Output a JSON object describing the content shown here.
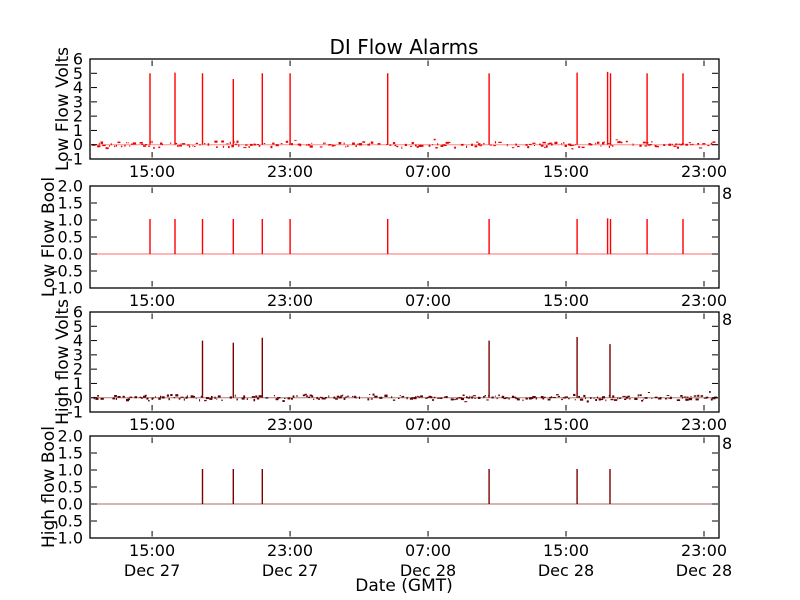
{
  "figure": {
    "title": "DI Flow Alarms",
    "xlabel": "Date (GMT)"
  },
  "chart_data": {
    "type": "line",
    "title": "DI Flow Alarms",
    "xlabel": "Date (GMT)",
    "legend": "none",
    "grid": false,
    "x_axis": {
      "unit": "hours since Dec 27 00:00 GMT",
      "range": [
        11.4,
        47.87
      ],
      "ticks": [
        {
          "t": 15,
          "time": "15:00",
          "date": "Dec 27"
        },
        {
          "t": 23,
          "time": "23:00",
          "date": "Dec 27"
        },
        {
          "t": 31,
          "time": "07:00",
          "date": "Dec 28"
        },
        {
          "t": 39,
          "time": "15:00",
          "date": "Dec 28"
        },
        {
          "t": 47,
          "time": "23:00",
          "date": "Dec 28"
        }
      ]
    },
    "clipped_tick_fragment": "8",
    "subplots": [
      {
        "ylabel": "Low Flow Volts",
        "ylim": [
          -1,
          6
        ],
        "ytick_values": [
          6,
          5,
          4,
          3,
          2,
          1,
          0,
          -1
        ],
        "ytick_labels": [
          "6",
          "5",
          "4",
          "3",
          "2",
          "1",
          "0",
          "-1"
        ],
        "line_color": "#ff0000",
        "baseline_color": "#ff8a8a",
        "noise_color": "#e80000",
        "baseline_value": 0,
        "noise_band": {
          "center": 0,
          "amplitude": 0.25,
          "density": 0.55
        },
        "show_dates": false,
        "show_clipped_fragment": false,
        "spikes": [
          {
            "t": 14.88,
            "v": 5.0
          },
          {
            "t": 16.33,
            "v": 5.05
          },
          {
            "t": 17.92,
            "v": 5.0
          },
          {
            "t": 19.71,
            "v": 4.6
          },
          {
            "t": 21.39,
            "v": 5.0
          },
          {
            "t": 23.0,
            "v": 5.0
          },
          {
            "t": 28.66,
            "v": 5.0
          },
          {
            "t": 34.54,
            "v": 5.0
          },
          {
            "t": 39.64,
            "v": 5.05
          },
          {
            "t": 41.41,
            "v": 5.1
          },
          {
            "t": 41.58,
            "v": 5.0
          },
          {
            "t": 43.7,
            "v": 5.0
          },
          {
            "t": 45.78,
            "v": 5.0
          }
        ]
      },
      {
        "ylabel": "Low Flow Bool",
        "ylim": [
          -1.0,
          2.0
        ],
        "ytick_values": [
          2.0,
          1.5,
          1.0,
          0.5,
          0.0,
          -0.5,
          -1.0
        ],
        "ytick_labels": [
          "2.0",
          "1.5",
          "1.0",
          "0.5",
          "0.0",
          "-0.5",
          "-1.0"
        ],
        "line_color": "#ff0000",
        "baseline_color": "#ff6b6b",
        "noise_color": "#ff0000",
        "baseline_value": 0,
        "noise_band": null,
        "show_dates": false,
        "show_clipped_fragment": true,
        "spikes": [
          {
            "t": 14.88,
            "v": 1.03
          },
          {
            "t": 16.33,
            "v": 1.03
          },
          {
            "t": 17.92,
            "v": 1.03
          },
          {
            "t": 19.71,
            "v": 1.03
          },
          {
            "t": 21.39,
            "v": 1.03
          },
          {
            "t": 23.0,
            "v": 1.03
          },
          {
            "t": 28.66,
            "v": 1.03
          },
          {
            "t": 34.54,
            "v": 1.03
          },
          {
            "t": 39.64,
            "v": 1.03
          },
          {
            "t": 41.41,
            "v": 1.05
          },
          {
            "t": 41.58,
            "v": 1.03
          },
          {
            "t": 43.7,
            "v": 1.03
          },
          {
            "t": 45.78,
            "v": 1.03
          }
        ]
      },
      {
        "ylabel": "High flow Volts",
        "ylim": [
          -1,
          6
        ],
        "ytick_values": [
          6,
          5,
          4,
          3,
          2,
          1,
          0,
          -1
        ],
        "ytick_labels": [
          "6",
          "5",
          "4",
          "3",
          "2",
          "1",
          "0",
          "-1"
        ],
        "line_color": "#7c0000",
        "baseline_color": "#b07a7a",
        "noise_color": "#5e0000",
        "baseline_value": 0,
        "noise_band": {
          "center": 0,
          "amplitude": 0.25,
          "density": 0.65
        },
        "show_dates": false,
        "show_clipped_fragment": true,
        "spikes": [
          {
            "t": 17.92,
            "v": 4.0
          },
          {
            "t": 19.71,
            "v": 3.85
          },
          {
            "t": 21.39,
            "v": 4.2
          },
          {
            "t": 34.54,
            "v": 4.0
          },
          {
            "t": 39.64,
            "v": 4.25
          },
          {
            "t": 41.55,
            "v": 3.75
          }
        ]
      },
      {
        "ylabel": "High flow Bool",
        "ylim": [
          -1.0,
          2.0
        ],
        "ytick_values": [
          2.0,
          1.5,
          1.0,
          0.5,
          0.0,
          -0.5,
          -1.0
        ],
        "ytick_labels": [
          "2.0",
          "1.5",
          "1.0",
          "0.5",
          "0.0",
          "-0.5",
          "-1.0"
        ],
        "line_color": "#7c0000",
        "baseline_color": "#a86868",
        "noise_color": "#7c0000",
        "baseline_value": 0,
        "noise_band": null,
        "show_dates": true,
        "show_clipped_fragment": true,
        "spikes": [
          {
            "t": 17.92,
            "v": 1.03
          },
          {
            "t": 19.71,
            "v": 1.03
          },
          {
            "t": 21.39,
            "v": 1.03
          },
          {
            "t": 34.54,
            "v": 1.03
          },
          {
            "t": 39.64,
            "v": 1.03
          },
          {
            "t": 41.55,
            "v": 1.03
          }
        ]
      }
    ]
  }
}
